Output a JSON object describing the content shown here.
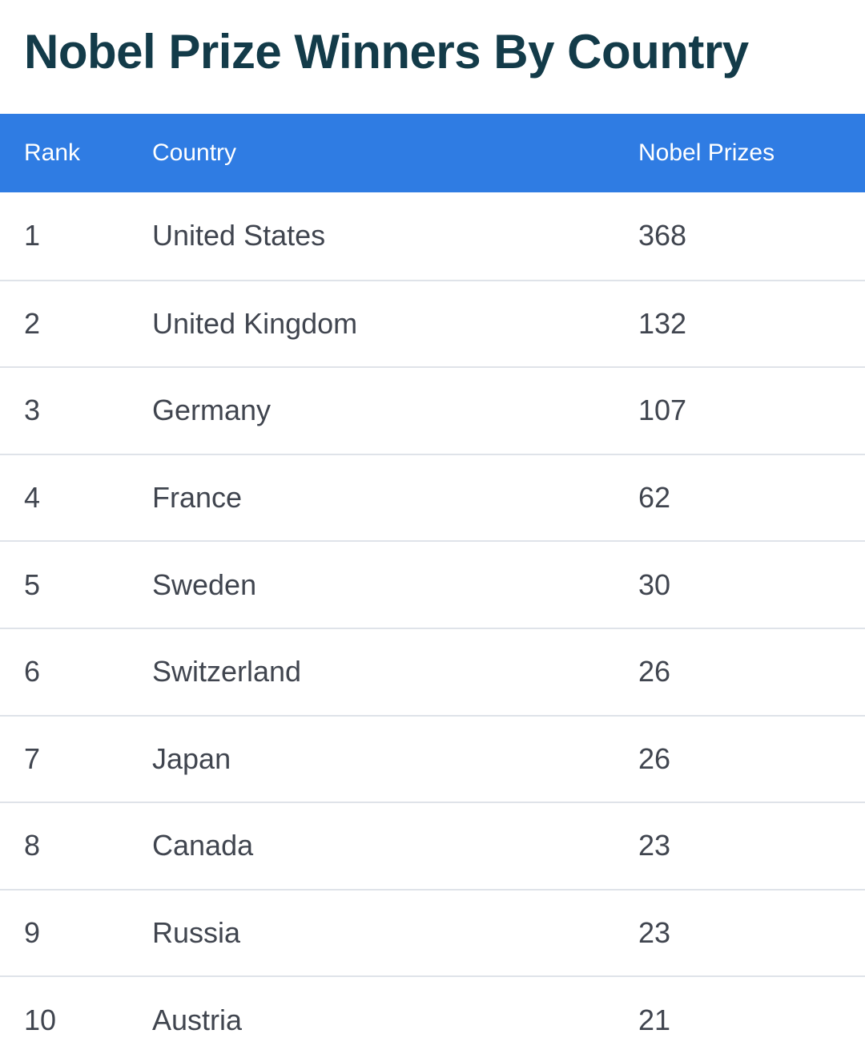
{
  "page": {
    "title": "Nobel Prize Winners By Country"
  },
  "table": {
    "columns": [
      {
        "key": "rank",
        "label": "Rank"
      },
      {
        "key": "country",
        "label": "Country"
      },
      {
        "key": "prizes",
        "label": "Nobel Prizes"
      }
    ],
    "rows": [
      {
        "rank": "1",
        "country": "United States",
        "prizes": "368"
      },
      {
        "rank": "2",
        "country": "United Kingdom",
        "prizes": "132"
      },
      {
        "rank": "3",
        "country": "Germany",
        "prizes": "107"
      },
      {
        "rank": "4",
        "country": "France",
        "prizes": "62"
      },
      {
        "rank": "5",
        "country": "Sweden",
        "prizes": "30"
      },
      {
        "rank": "6",
        "country": "Switzerland",
        "prizes": "26"
      },
      {
        "rank": "7",
        "country": "Japan",
        "prizes": "26"
      },
      {
        "rank": "8",
        "country": "Canada",
        "prizes": "23"
      },
      {
        "rank": "9",
        "country": "Russia",
        "prizes": "23"
      },
      {
        "rank": "10",
        "country": "Austria",
        "prizes": "21"
      }
    ]
  },
  "colors": {
    "page_bg": "#FFFFFF",
    "header_bg": "#2F7CE3",
    "header_text": "#FFFFFF",
    "title_text": "#133B49",
    "row_text": "#40454F",
    "separator": "#DFE3E9"
  }
}
